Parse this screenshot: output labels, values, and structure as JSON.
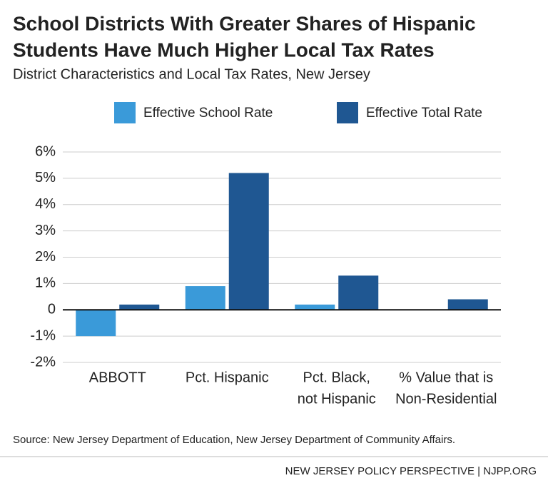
{
  "chart_data": {
    "type": "bar",
    "title": [
      "School Districts With Greater Shares of Hispanic",
      "Students Have Much Higher Local Tax Rates"
    ],
    "subtitle": "District Characteristics and Local Tax Rates, New Jersey",
    "categories": [
      [
        "ABBOTT"
      ],
      [
        "Pct. Hispanic"
      ],
      [
        "Pct. Black,",
        "not Hispanic"
      ],
      [
        "% Value that is",
        "Non-Residential"
      ]
    ],
    "series": [
      {
        "name": "Effective School Rate",
        "color": "#3a9ad9",
        "values": [
          -1.0,
          0.9,
          0.2,
          0
        ]
      },
      {
        "name": "Effective Total Rate",
        "color": "#1f5792",
        "values": [
          0.2,
          5.2,
          1.3,
          0.4
        ]
      }
    ],
    "ylim": [
      -2,
      6
    ],
    "yticks": [
      {
        "value": -2,
        "label": "-2%"
      },
      {
        "value": -1,
        "label": "-1%"
      },
      0,
      {
        "value": 1,
        "label": "1%"
      },
      {
        "value": 2,
        "label": "2%"
      },
      {
        "value": 3,
        "label": "3%"
      },
      {
        "value": 4,
        "label": "4%"
      },
      {
        "value": 5,
        "label": "5%"
      },
      {
        "value": 6,
        "label": "6%"
      }
    ],
    "grid": true,
    "source": "Source: New Jersey Department of Education, New Jersey Department of Community Affairs.",
    "credit": "NEW JERSEY POLICY PERSPECTIVE | NJPP.ORG"
  }
}
